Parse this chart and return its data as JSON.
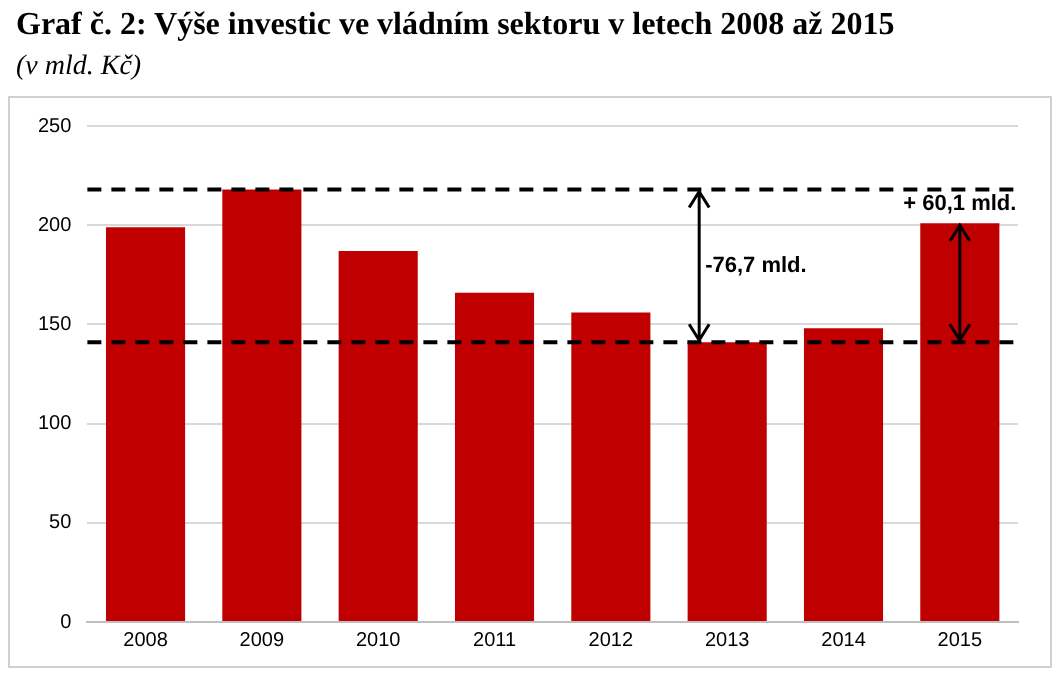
{
  "chart_data": {
    "type": "bar",
    "title": "Graf č. 2: Výše investic ve vládním sektoru v letech 2008 až 2015",
    "subtitle": "(v mld. Kč)",
    "categories": [
      "2008",
      "2009",
      "2010",
      "2011",
      "2012",
      "2013",
      "2014",
      "2015"
    ],
    "values": [
      199,
      218,
      187,
      166,
      156,
      141,
      148,
      201
    ],
    "color": "#c00000",
    "ylim": [
      0,
      250
    ],
    "yticks": [
      0,
      50,
      100,
      150,
      200,
      250
    ],
    "grid": "y",
    "ref_lines": [
      {
        "axis": "y",
        "value": 218,
        "line_style": "dashed",
        "color": "#000000"
      },
      {
        "axis": "y",
        "value": 141,
        "line_style": "dashed",
        "color": "#000000"
      }
    ],
    "annotations": [
      {
        "text": "-76,7 mld.",
        "x": "2013",
        "y": 218
      },
      {
        "text": "+ 60,1 mld.",
        "x": "2015",
        "y": 201
      }
    ]
  }
}
